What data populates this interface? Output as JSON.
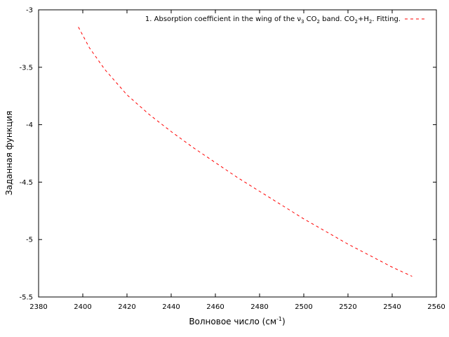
{
  "chart_data": {
    "type": "line",
    "title": "",
    "xlabel": "Волновое число (см",
    "xlabel_sup": "-1",
    "xlabel_tail": ")",
    "ylabel": "Заданная функция",
    "xlim": [
      2380,
      2560
    ],
    "ylim": [
      -5.5,
      -3
    ],
    "x_ticks": [
      2380,
      2400,
      2420,
      2440,
      2460,
      2480,
      2500,
      2520,
      2540,
      2560
    ],
    "y_ticks": [
      -3,
      -3.5,
      -4,
      -4.5,
      -5,
      -5.5
    ],
    "x_tick_labels": [
      "2380",
      "2400",
      "2420",
      "2440",
      "2460",
      "2480",
      "2500",
      "2520",
      "2540",
      "2560"
    ],
    "y_tick_labels": [
      "-3",
      "-3.5",
      "-4",
      "-4.5",
      "-5",
      "-5.5"
    ],
    "grid": false,
    "legend_position": "top-right",
    "legend": {
      "p1": "1. Absorption coefficient in the wing of the ν",
      "sub1": "3",
      "p2": " CO",
      "sub2": "2",
      "p3": " band. CO",
      "sub3": "2",
      "p4": "+H",
      "sub4": "2",
      "p5": ". Fitting."
    },
    "series": [
      {
        "line_color": "#ff0000",
        "line_style": "dashed",
        "x": [
          2398,
          2403,
          2410,
          2420,
          2430,
          2440,
          2450,
          2460,
          2470,
          2480,
          2490,
          2500,
          2510,
          2520,
          2530,
          2540,
          2549
        ],
        "y": [
          -3.15,
          -3.33,
          -3.52,
          -3.74,
          -3.91,
          -4.06,
          -4.2,
          -4.33,
          -4.46,
          -4.58,
          -4.7,
          -4.82,
          -4.93,
          -5.04,
          -5.14,
          -5.24,
          -5.32
        ]
      }
    ]
  }
}
